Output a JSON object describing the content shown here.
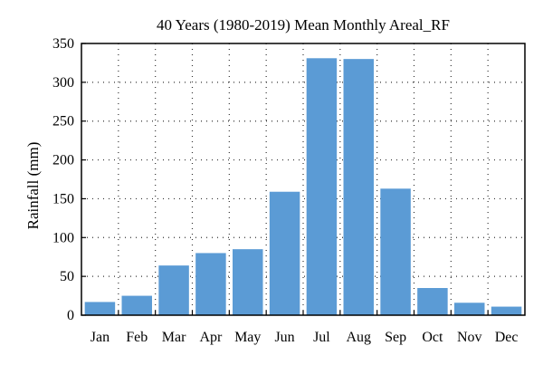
{
  "chart_data": {
    "type": "bar",
    "title": "40 Years (1980-2019) Mean Monthly Areal_RF",
    "ylabel": "Rainfall (mm)",
    "xlabel": "",
    "categories": [
      "Jan",
      "Feb",
      "Mar",
      "Apr",
      "May",
      "Jun",
      "Jul",
      "Aug",
      "Sep",
      "Oct",
      "Nov",
      "Dec"
    ],
    "values": [
      17,
      25,
      64,
      80,
      85,
      159,
      331,
      330,
      163,
      35,
      16,
      11
    ],
    "ylim": [
      0,
      350
    ],
    "yticks": [
      0,
      50,
      100,
      150,
      200,
      250,
      300,
      350
    ],
    "grid": true,
    "bar_color": "#5b9bd5",
    "legend": "none"
  }
}
